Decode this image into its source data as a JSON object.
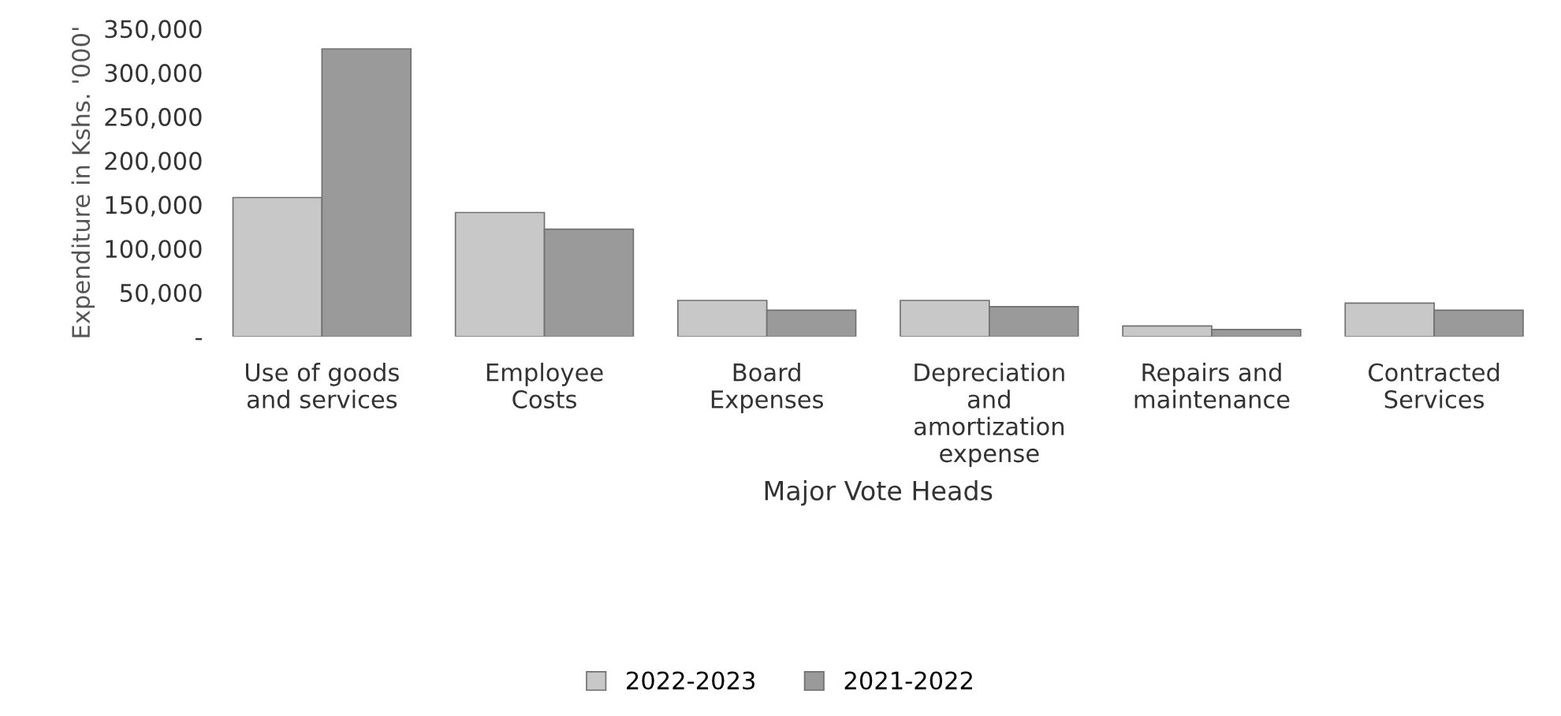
{
  "chart_data": {
    "type": "bar",
    "xlabel": "Major Vote Heads",
    "ylabel": "Expenditure in Kshs. '000'",
    "categories": [
      "Use of goods\nand services",
      "Employee\nCosts",
      "Board\nExpenses",
      "Depreciation\nand\namortization\nexpense",
      "Repairs and\nmaintenance",
      "Contracted\nServices"
    ],
    "series": [
      {
        "name": "2022-2023",
        "color": "#c8c8c8",
        "values": [
          158000,
          141000,
          41000,
          41000,
          12000,
          38000
        ]
      },
      {
        "name": "2021-2022",
        "color": "#9a9a9a",
        "values": [
          327000,
          122000,
          30000,
          34000,
          8000,
          30000
        ]
      }
    ],
    "ylim": [
      0,
      350000
    ],
    "yticks": [
      {
        "value": 0,
        "label": "-"
      },
      {
        "value": 50000,
        "label": "50,000"
      },
      {
        "value": 100000,
        "label": "100,000"
      },
      {
        "value": 150000,
        "label": "150,000"
      },
      {
        "value": 200000,
        "label": "200,000"
      },
      {
        "value": 250000,
        "label": "250,000"
      },
      {
        "value": 300000,
        "label": "300,000"
      },
      {
        "value": 350000,
        "label": "350,000"
      }
    ],
    "grid": false,
    "legend": "bottom"
  }
}
